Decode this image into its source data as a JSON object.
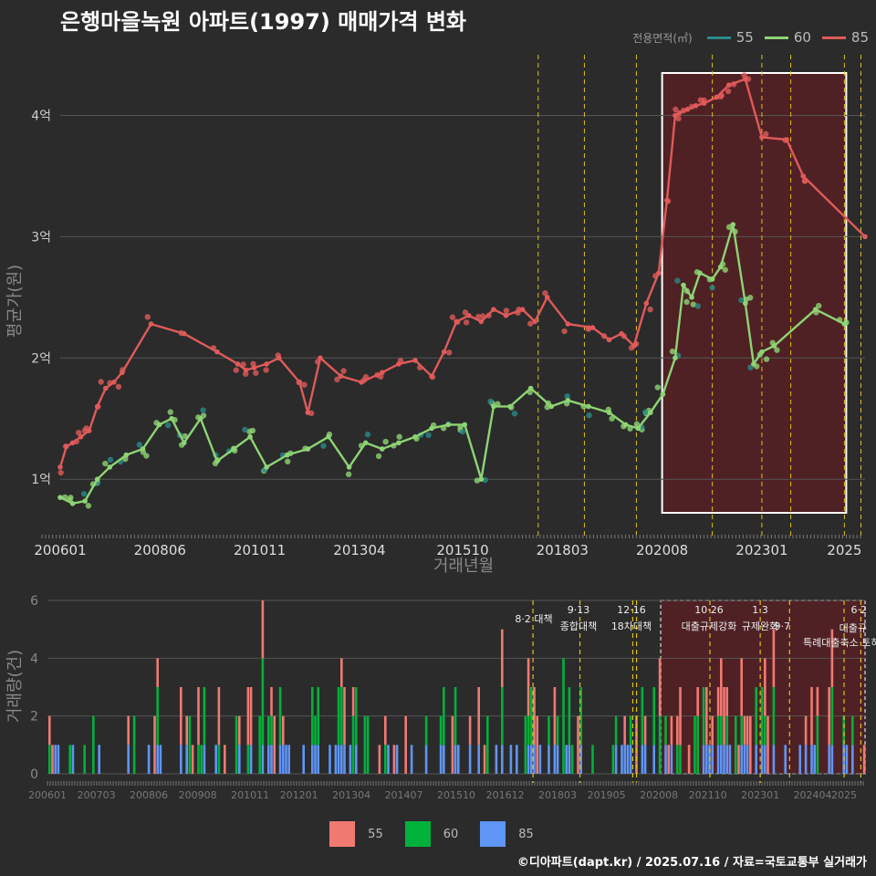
{
  "title": "은행마을녹원 아파트(1997) 매매가격 변화",
  "footer": "©디아파트(dapt.kr) / 2025.07.16 / 자료=국토교통부 실거래가",
  "colors": {
    "bg": "#2b2b2b",
    "grid": "#555555",
    "s55": "#e05a5a",
    "s60": "#8ed474",
    "s55dot": "#2a8a8a",
    "bar55": "#f07a72",
    "bar60": "#00b13b",
    "bar85": "#5f95f5",
    "policy": "#e0c020",
    "highlight": "#5c1f24"
  },
  "chart_data": [
    {
      "type": "line",
      "title": "은행마을녹원 아파트(1997) 매매가격 변화",
      "xlabel": "거래년월",
      "ylabel": "평균가(원)",
      "x_ticks": [
        "200601",
        "200806",
        "201011",
        "201304",
        "201510",
        "201803",
        "202008",
        "202301",
        "2025"
      ],
      "y_ticks": [
        "1억",
        "2억",
        "3억",
        "4억"
      ],
      "ylim": [
        0.55,
        4.5
      ],
      "legend_title": "전용면적(㎡)",
      "legend": [
        {
          "label": "55",
          "color": "#2a8a8a"
        },
        {
          "label": "60",
          "color": "#8ed474"
        },
        {
          "label": "85",
          "color": "#e05a5a"
        }
      ],
      "series": [
        {
          "name": "85",
          "x": [
            2006.0,
            2006.15,
            2006.3,
            2006.5,
            2006.7,
            2006.9,
            2007.1,
            2007.3,
            2007.5,
            2008.2,
            2009.0,
            2009.8,
            2010.3,
            2010.5,
            2010.7,
            2011.0,
            2011.3,
            2011.8,
            2012.0,
            2012.3,
            2012.8,
            2013.3,
            2013.8,
            2014.2,
            2014.6,
            2015.0,
            2015.3,
            2015.6,
            2015.9,
            2016.2,
            2016.5,
            2016.8,
            2017.2,
            2017.5,
            2017.8,
            2018.3,
            2018.9,
            2019.3,
            2019.6,
            2019.9,
            2020.2,
            2020.5,
            2020.7,
            2020.9,
            2021.0,
            2021.2,
            2021.4,
            2021.6,
            2021.9,
            2022.2,
            2022.6,
            2023.0,
            2023.6,
            2024.0,
            2025.5
          ],
          "values": [
            1.1,
            1.27,
            1.3,
            1.35,
            1.4,
            1.6,
            1.75,
            1.8,
            1.88,
            2.28,
            2.2,
            2.05,
            1.95,
            1.9,
            1.92,
            1.95,
            2.0,
            1.8,
            1.55,
            2.0,
            1.85,
            1.8,
            1.88,
            1.95,
            1.98,
            1.85,
            2.05,
            2.3,
            2.35,
            2.3,
            2.4,
            2.35,
            2.4,
            2.3,
            2.5,
            2.28,
            2.25,
            2.15,
            2.2,
            2.1,
            2.45,
            2.7,
            3.3,
            4.0,
            4.02,
            4.05,
            4.08,
            4.1,
            4.15,
            4.25,
            4.3,
            3.82,
            3.8,
            3.5,
            3.0
          ]
        },
        {
          "name": "60",
          "x": [
            2006.0,
            2006.3,
            2006.6,
            2006.9,
            2007.2,
            2007.6,
            2008.0,
            2008.4,
            2008.7,
            2009.0,
            2009.4,
            2009.8,
            2010.2,
            2010.6,
            2011.0,
            2011.5,
            2012.0,
            2012.5,
            2013.0,
            2013.4,
            2013.8,
            2014.2,
            2014.6,
            2015.0,
            2015.4,
            2015.8,
            2016.2,
            2016.5,
            2016.9,
            2017.4,
            2017.9,
            2018.3,
            2018.8,
            2019.3,
            2019.7,
            2020.0,
            2020.3,
            2020.6,
            2020.9,
            2021.1,
            2021.3,
            2021.5,
            2021.8,
            2022.0,
            2022.3,
            2022.6,
            2022.8,
            2023.0,
            2023.3,
            2024.3,
            2025.0
          ],
          "values": [
            0.85,
            0.8,
            0.82,
            1.0,
            1.1,
            1.2,
            1.25,
            1.45,
            1.5,
            1.3,
            1.5,
            1.15,
            1.25,
            1.35,
            1.1,
            1.2,
            1.25,
            1.35,
            1.1,
            1.3,
            1.25,
            1.3,
            1.35,
            1.42,
            1.45,
            1.45,
            1.0,
            1.6,
            1.6,
            1.75,
            1.6,
            1.65,
            1.6,
            1.55,
            1.45,
            1.42,
            1.55,
            1.7,
            2.0,
            2.6,
            2.5,
            2.7,
            2.65,
            2.75,
            3.1,
            2.45,
            1.95,
            2.05,
            2.1,
            2.4,
            2.28
          ]
        }
      ],
      "highlight_region": {
        "from": "202008",
        "to": "2025"
      }
    },
    {
      "type": "bar",
      "title": "",
      "xlabel": "",
      "ylabel": "거래량(건)",
      "x_ticks": [
        "200601",
        "200703",
        "200806",
        "200908",
        "201011",
        "201201",
        "201304",
        "201407",
        "201510",
        "201612",
        "201803",
        "201905",
        "202008",
        "202110",
        "202301",
        "202404",
        "2025"
      ],
      "y_ticks": [
        "0",
        "2",
        "4",
        "6"
      ],
      "ylim": [
        0,
        6
      ],
      "legend": [
        {
          "label": "55",
          "color": "#f07a72"
        },
        {
          "label": "60",
          "color": "#00b13b"
        },
        {
          "label": "85",
          "color": "#5f95f5"
        }
      ],
      "annotations": [
        {
          "date": "8·2 대책",
          "label": ""
        },
        {
          "date": "9·13",
          "label": "종합대책"
        },
        {
          "date": "12·16",
          "label": "18차대책"
        },
        {
          "date": "10·26",
          "label": "대출규제강화"
        },
        {
          "date": "1·3",
          "label": "규제완화"
        },
        {
          "date": "9·7",
          "label": "특례대출축소 토허제 해제"
        },
        {
          "date": "6·2",
          "label": "대출규"
        }
      ]
    }
  ]
}
